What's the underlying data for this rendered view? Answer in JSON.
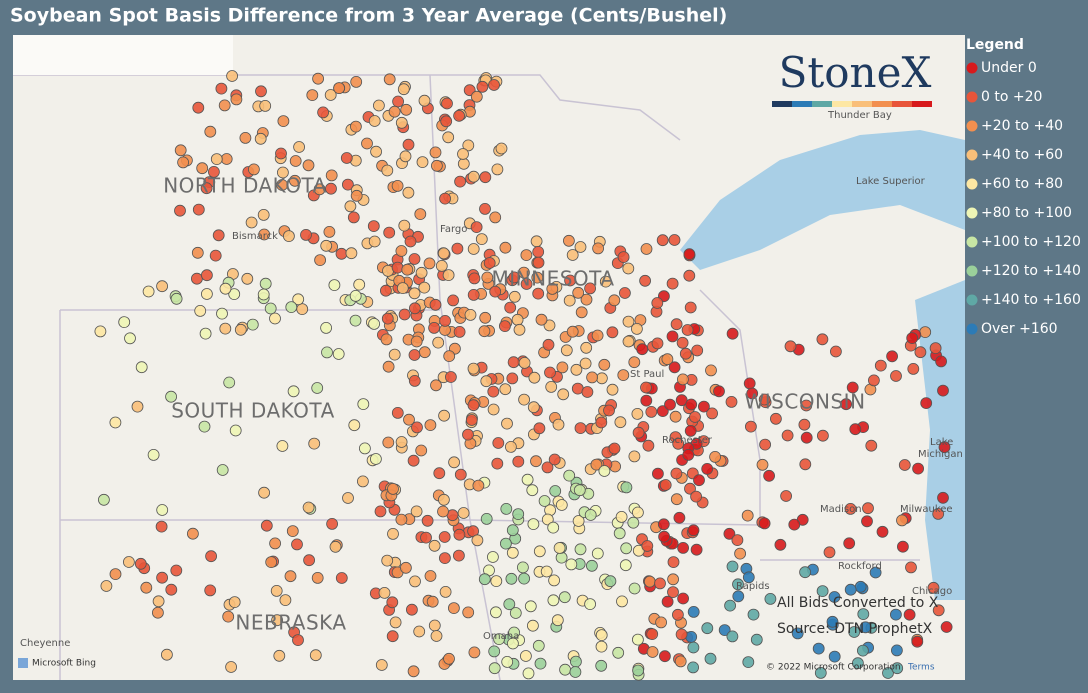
{
  "header": {
    "title": "Soybean Spot Basis Difference from 3 Year Average (Cents/Bushel)"
  },
  "legend": {
    "title": "Legend",
    "items": [
      {
        "label": "Under 0",
        "color": "#d7191c"
      },
      {
        "label": "0 to +20",
        "color": "#e8553a"
      },
      {
        "label": "+20 to +40",
        "color": "#f28f4f"
      },
      {
        "label": "+40 to +60",
        "color": "#f9bf79"
      },
      {
        "label": "+60 to +80",
        "color": "#fde7a3"
      },
      {
        "label": "+80 to +100",
        "color": "#eef5b5"
      },
      {
        "label": "+100 to +120",
        "color": "#c8e6a4"
      },
      {
        "label": "+120 to +140",
        "color": "#9bd09a"
      },
      {
        "label": "+140 to +160",
        "color": "#5fa8a5"
      },
      {
        "label": "Over +160",
        "color": "#2c7bb6"
      }
    ]
  },
  "map": {
    "states": [
      "NORTH DAKOTA",
      "MINNESOTA",
      "SOUTH DAKOTA",
      "WISCONSIN",
      "NEBRASKA"
    ],
    "places": [
      "Bismarck",
      "Fargo",
      "St Paul",
      "Rochester",
      "Thunder Bay",
      "Lake Superior",
      "Lake",
      "Michigan",
      "Milwaukee",
      "Madison",
      "Rockford",
      "Chicago",
      "Cheyenne",
      "Omaha",
      "Rapids"
    ],
    "brand": "StoneX",
    "attribution": "Microsoft Bing",
    "copyright": "© 2022 Microsoft Corporation",
    "terms": "Terms"
  },
  "notes": [
    "All Bids Converted to X",
    "Source: DTN ProphetX"
  ]
}
